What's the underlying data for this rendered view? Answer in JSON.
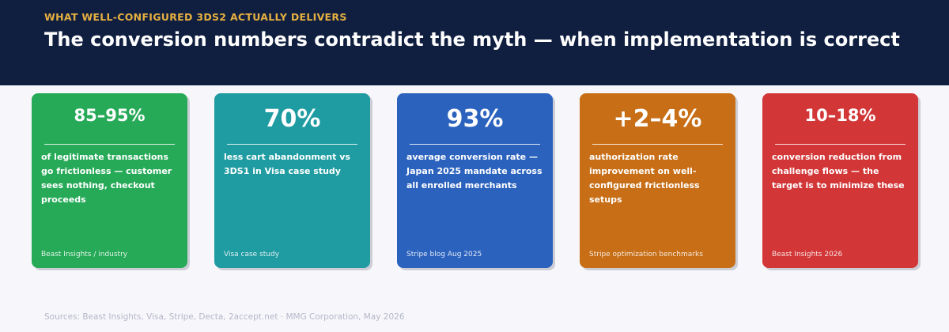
{
  "header": {
    "eyebrow": "WHAT WELL-CONFIGURED 3DS2 ACTUALLY DELIVERS",
    "title": "The conversion numbers contradict the myth — when implementation is correct"
  },
  "cards": [
    {
      "value": "85–95%",
      "description": "of legitimate transactions go frictionless — customer sees nothing, checkout proceeds",
      "source": "Beast Insights / industry",
      "color": "#27aa58"
    },
    {
      "value": "70%",
      "description": "less cart abandonment vs 3DS1 in Visa case study",
      "source": "Visa case study",
      "color": "#1f9ca2"
    },
    {
      "value": "93%",
      "description": "average conversion rate — Japan 2025 mandate across all enrolled merchants",
      "source": "Stripe blog Aug 2025",
      "color": "#2b62bd"
    },
    {
      "value": "+2–4%",
      "description": "authorization rate improvement on well-configured frictionless setups",
      "source": "Stripe optimization benchmarks",
      "color": "#c76e16"
    },
    {
      "value": "10–18%",
      "description": "conversion reduction from challenge flows — the target is to minimize these",
      "source": "Beast Insights 2026",
      "color": "#d23637"
    }
  ],
  "footer": {
    "text": "Sources: Beast Insights, Visa, Stripe, Decta, 2accept.net  ·  MMG Corporation, May 2026"
  },
  "colors": {
    "header_bg": "#101f40",
    "eyebrow": "#e6b040",
    "page_bg": "#f7f7fb"
  }
}
